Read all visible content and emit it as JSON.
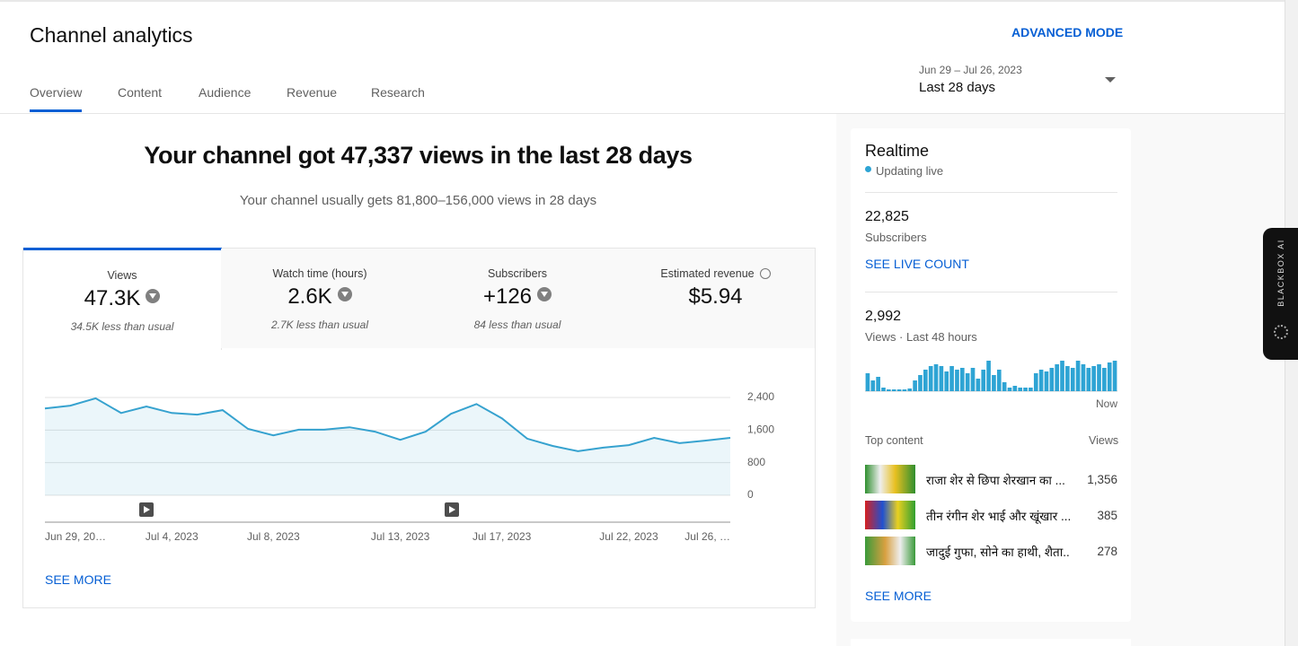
{
  "header": {
    "title": "Channel analytics",
    "advanced_mode": "ADVANCED MODE",
    "tabs": [
      "Overview",
      "Content",
      "Audience",
      "Revenue",
      "Research"
    ],
    "date_range": "Jun 29 – Jul 26, 2023",
    "period": "Last 28 days"
  },
  "summary": {
    "headline": "Your channel got 47,337 views in the last 28 days",
    "subline": "Your channel usually gets 81,800–156,000 views in 28 days"
  },
  "metrics": [
    {
      "label": "Views",
      "value": "47.3K",
      "note": "34.5K less than usual"
    },
    {
      "label": "Watch time (hours)",
      "value": "2.6K",
      "note": "2.7K less than usual"
    },
    {
      "label": "Subscribers",
      "value": "+126",
      "note": "84 less than usual"
    },
    {
      "label": "Estimated revenue",
      "value": "$5.94"
    }
  ],
  "chart_data": {
    "type": "line",
    "categories": [
      "Jun 29, 20…",
      null,
      null,
      null,
      null,
      "Jul 4, 2023",
      null,
      null,
      null,
      "Jul 8, 2023",
      null,
      null,
      null,
      null,
      "Jul 13, 2023",
      null,
      null,
      null,
      "Jul 17, 2023",
      null,
      null,
      null,
      null,
      "Jul 22, 2023",
      null,
      null,
      null,
      "Jul 26, …"
    ],
    "values": [
      2130,
      2200,
      2380,
      2020,
      2180,
      2020,
      1980,
      2090,
      1630,
      1470,
      1610,
      1610,
      1670,
      1560,
      1360,
      1560,
      2000,
      2240,
      1890,
      1390,
      1210,
      1080,
      1170,
      1230,
      1410,
      1280,
      1340,
      1410
    ],
    "color": "#36a2cf",
    "ylim": [
      0,
      2400
    ],
    "yticks": [
      0,
      800,
      {
        "value": 1600,
        "label": "1,600"
      },
      {
        "value": 2400,
        "label": "2,400"
      }
    ],
    "grid": true
  },
  "see_more": "SEE MORE",
  "realtime": {
    "title": "Realtime",
    "status": "Updating live",
    "subscribers": "22,825",
    "subscribers_label": "Subscribers",
    "live_count": "SEE LIVE COUNT",
    "views": "2,992",
    "views_label": "Views · Last 48 hours",
    "chart_data": {
      "type": "bar",
      "color": "#2ea4d4",
      "x_end_label": "Now",
      "values": [
        60,
        36,
        48,
        12,
        6,
        6,
        6,
        6,
        9,
        36,
        54,
        72,
        84,
        90,
        84,
        66,
        84,
        72,
        78,
        60,
        78,
        42,
        72,
        102,
        54,
        72,
        30,
        12,
        18,
        12,
        12,
        12,
        60,
        72,
        66,
        78,
        90,
        102,
        84,
        78,
        102,
        90,
        78,
        84,
        90,
        78,
        96,
        102
      ]
    },
    "top_content": {
      "title": "Top content",
      "views_header": "Views",
      "items": [
        {
          "title": "राजा शेर से छिपा शेरखान का ...",
          "views": "1,356"
        },
        {
          "title": "तीन रंगीन शेर भाई और खूंखार ...",
          "views": "385"
        },
        {
          "title": "जादुई गुफा, सोने का हाथी, शैता...",
          "views": "278"
        }
      ]
    },
    "see_more": "SEE MORE"
  },
  "sidebar": {
    "label": "BLACKBOX AI"
  }
}
